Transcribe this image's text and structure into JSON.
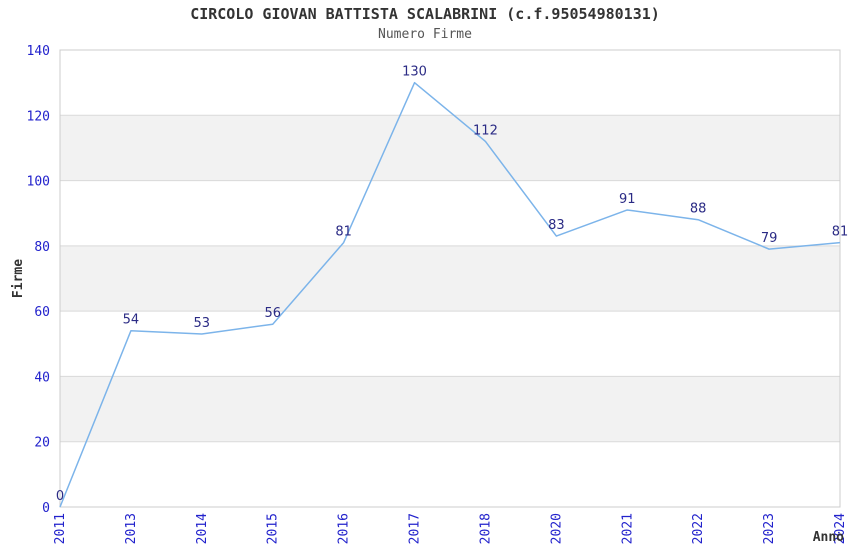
{
  "title": "CIRCOLO GIOVAN BATTISTA SCALABRINI (c.f.95054980131)",
  "subtitle": "Numero Firme",
  "chart_data": {
    "type": "line",
    "title": "CIRCOLO GIOVAN BATTISTA SCALABRINI (c.f.95054980131)",
    "subtitle": "Numero Firme",
    "categories": [
      "2011",
      "2013",
      "2014",
      "2015",
      "2016",
      "2017",
      "2018",
      "2020",
      "2021",
      "2022",
      "2023",
      "2024"
    ],
    "values": [
      0,
      54,
      53,
      56,
      81,
      130,
      112,
      83,
      91,
      88,
      79,
      81
    ],
    "xlabel": "Anno",
    "ylabel": "Firme",
    "ylim": [
      0,
      140
    ],
    "ytick_step": 20,
    "yticks": [
      0,
      20,
      40,
      60,
      80,
      100,
      120,
      140
    ],
    "grid": true,
    "legend": "none",
    "plot_bands_gray": [
      [
        20,
        40
      ],
      [
        60,
        80
      ],
      [
        100,
        120
      ]
    ],
    "colors": {
      "line": "#7cb4ea",
      "band": "#f2f2f2",
      "gridline": "#d9d9d9",
      "border": "#cccccc",
      "tick_label": "#2222cc",
      "data_label": "#2b2b85",
      "axis_title": "#333333",
      "title": "#333333",
      "subtitle": "#555555"
    }
  }
}
